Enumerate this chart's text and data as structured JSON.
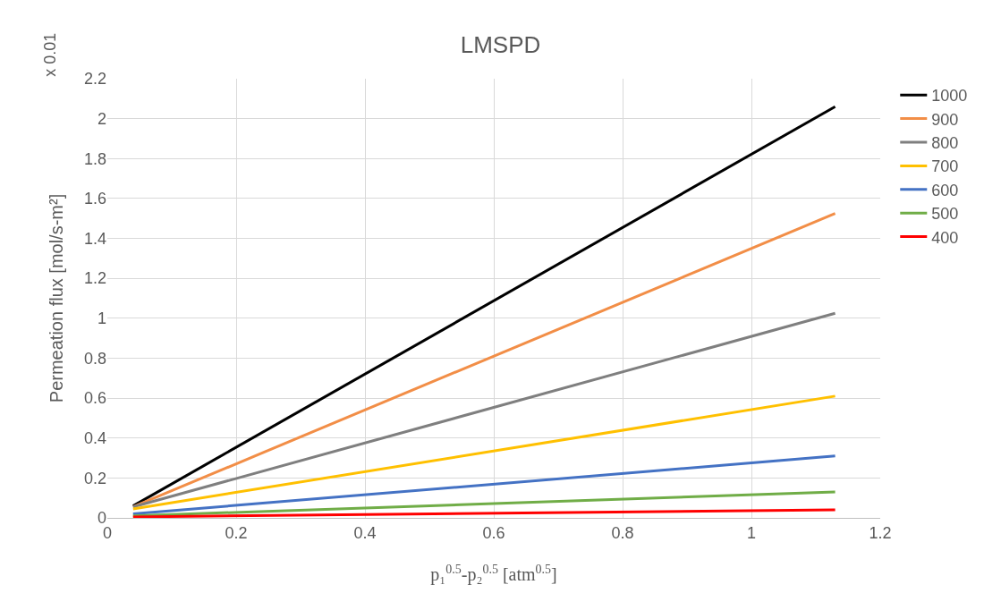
{
  "chart_data": {
    "type": "line",
    "title": "LMSPD",
    "xlabel": "p₁$^{0.5}$-p₂$^{0.5}$ [atm$^{0.5}$]",
    "ylabel": "Permeation flux [mol/s-m²]",
    "annotations": [
      "x 0.01"
    ],
    "x": [
      0.04,
      1.13
    ],
    "series": [
      {
        "name": "1000",
        "color": "#000000",
        "values": [
          0.06,
          2.06
        ]
      },
      {
        "name": "900",
        "color": "#f28e47",
        "values": [
          0.055,
          1.525
        ]
      },
      {
        "name": "800",
        "color": "#7f7f7f",
        "values": [
          0.055,
          1.025
        ]
      },
      {
        "name": "700",
        "color": "#ffc000",
        "values": [
          0.045,
          0.61
        ]
      },
      {
        "name": "600",
        "color": "#4472c4",
        "values": [
          0.02,
          0.31
        ]
      },
      {
        "name": "500",
        "color": "#70ad47",
        "values": [
          0.01,
          0.13
        ]
      },
      {
        "name": "400",
        "color": "#ff0000",
        "values": [
          0.005,
          0.04
        ]
      }
    ],
    "xlim": [
      0,
      1.2
    ],
    "xticks": [
      0,
      0.2,
      0.4,
      0.6,
      0.8,
      1,
      1.2
    ],
    "ylim": [
      0,
      2.2
    ],
    "yticks": [
      0,
      0.2,
      0.4,
      0.6,
      0.8,
      1,
      1.2,
      1.4,
      1.6,
      1.8,
      2,
      2.2
    ],
    "grid": true,
    "legend": "right",
    "marker": "none",
    "line_style": "solid"
  }
}
